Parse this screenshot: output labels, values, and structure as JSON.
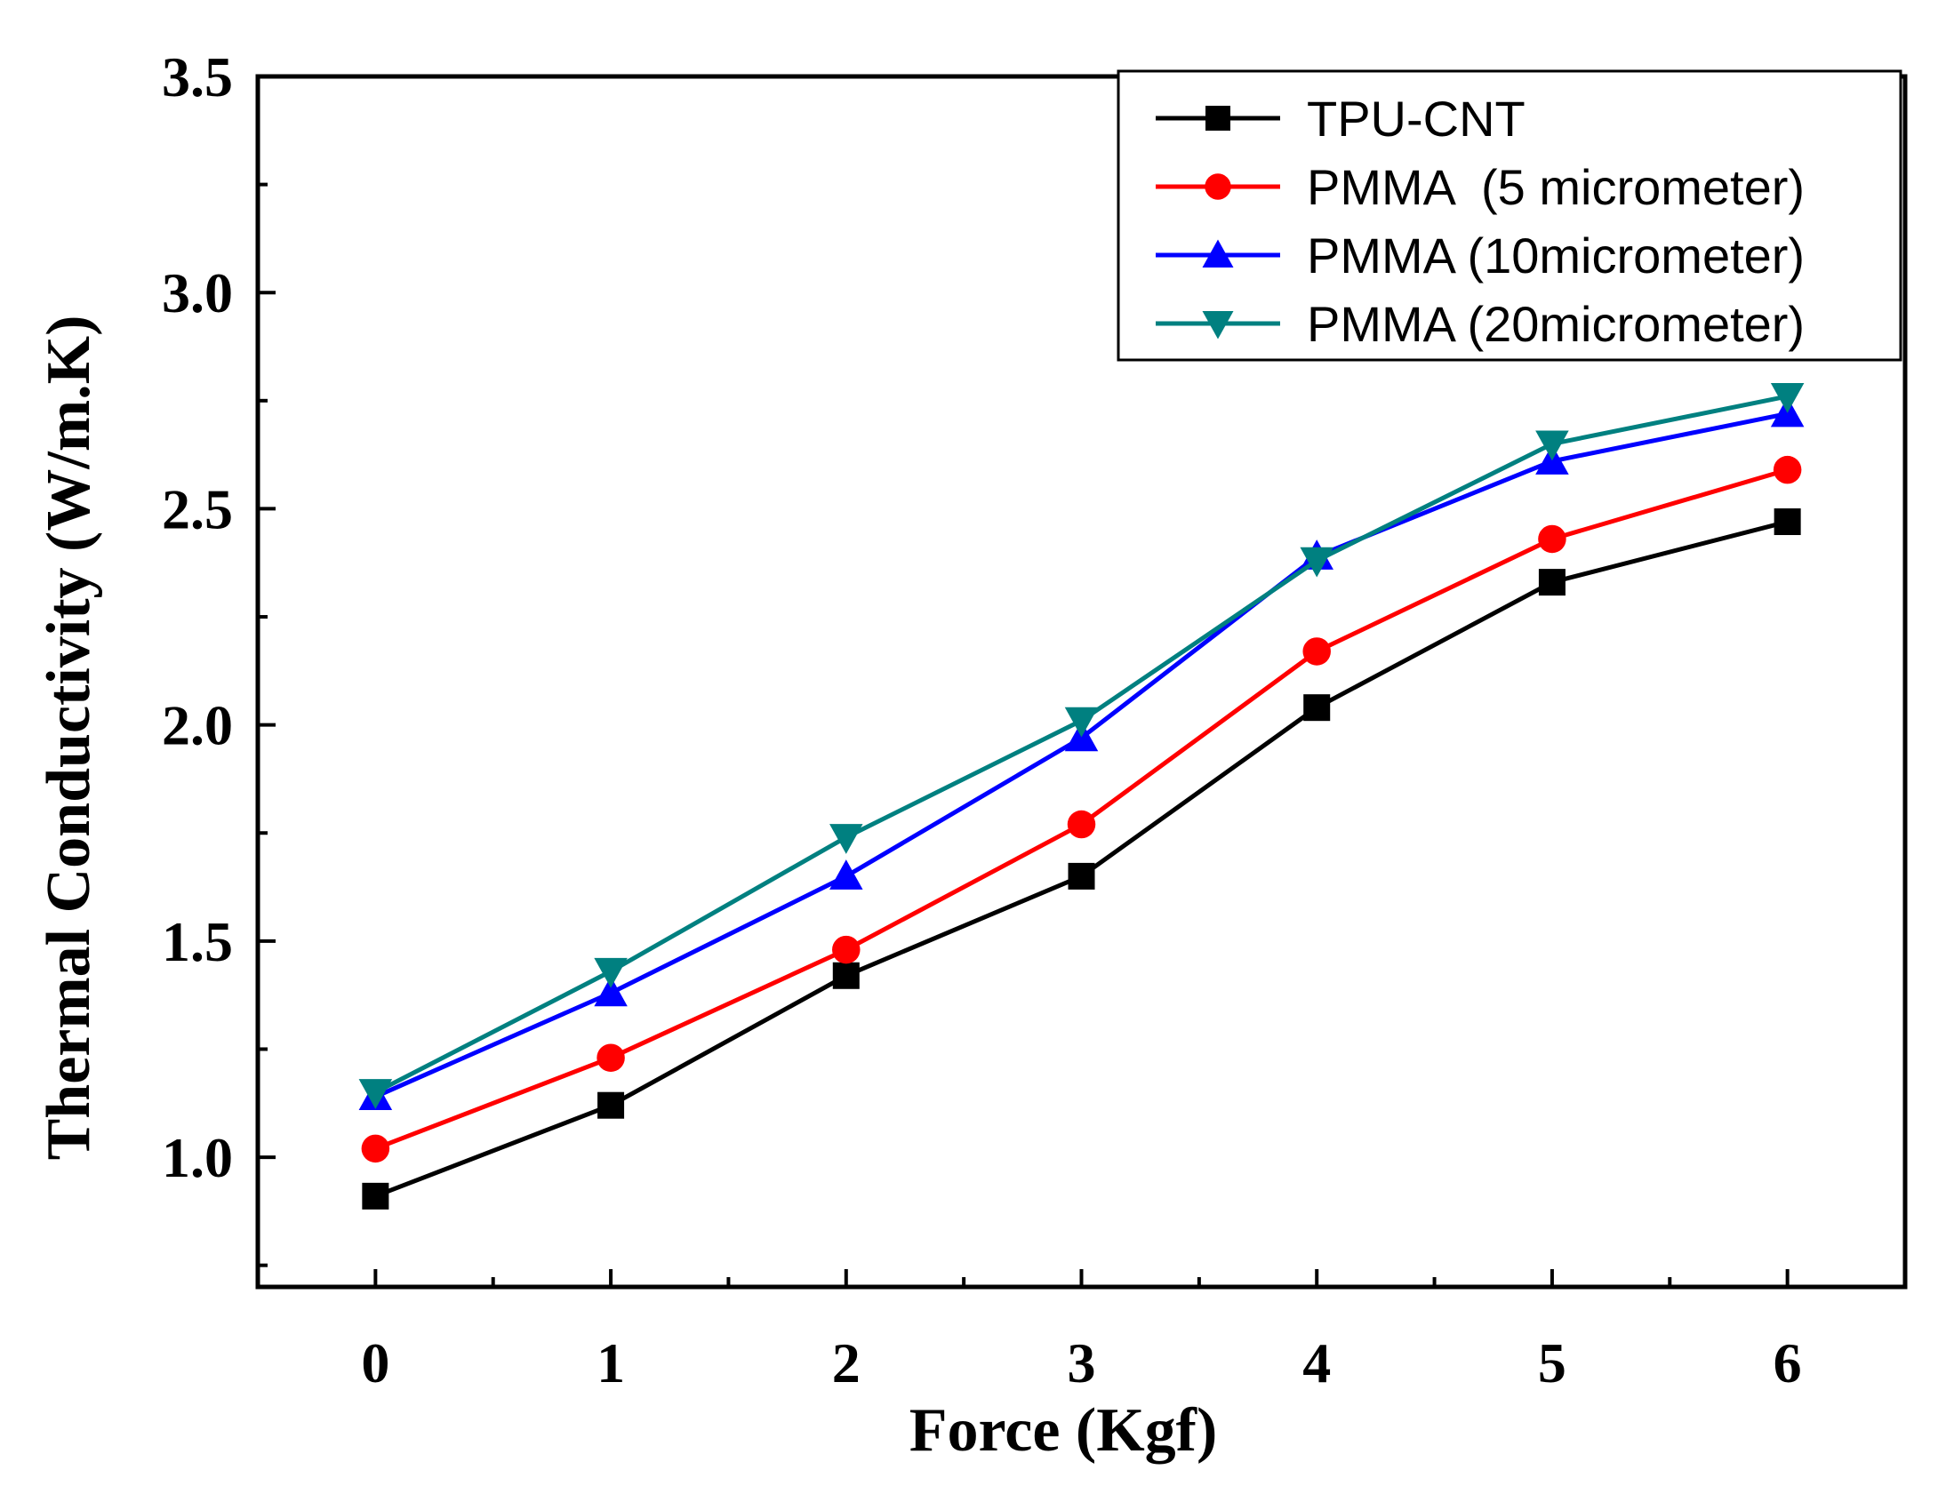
{
  "chart_data": {
    "type": "line",
    "title": "",
    "xlabel": "Force (Kgf)",
    "ylabel": "Thermal Conductivity (W/m.K)",
    "xlim": [
      -0.5,
      6.5
    ],
    "ylim": [
      0.7,
      3.5
    ],
    "x": [
      0,
      1,
      2,
      3,
      4,
      5,
      6
    ],
    "x_ticks": [
      "0",
      "1",
      "2",
      "3",
      "4",
      "5",
      "6"
    ],
    "y_ticks": [
      "1.0",
      "1.5",
      "2.0",
      "2.5",
      "3.0",
      "3.5"
    ],
    "y_tick_values": [
      1.0,
      1.5,
      2.0,
      2.5,
      3.0,
      3.5
    ],
    "grid": false,
    "legend_position": "top-right",
    "series": [
      {
        "name": "TPU-CNT",
        "color": "#000000",
        "marker": "square",
        "values": [
          0.91,
          1.12,
          1.42,
          1.65,
          2.04,
          2.33,
          2.47
        ]
      },
      {
        "name": "PMMA  (5 micrometer)",
        "color": "#ff0000",
        "marker": "circle",
        "values": [
          1.02,
          1.23,
          1.48,
          1.77,
          2.17,
          2.43,
          2.59
        ]
      },
      {
        "name": "PMMA (10micrometer)",
        "color": "#0000ff",
        "marker": "triangle-up",
        "values": [
          1.14,
          1.38,
          1.65,
          1.97,
          2.39,
          2.61,
          2.72
        ]
      },
      {
        "name": "PMMA (20micrometer)",
        "color": "#008080",
        "marker": "triangle-down",
        "values": [
          1.15,
          1.43,
          1.74,
          2.01,
          2.38,
          2.65,
          2.76
        ]
      }
    ]
  }
}
